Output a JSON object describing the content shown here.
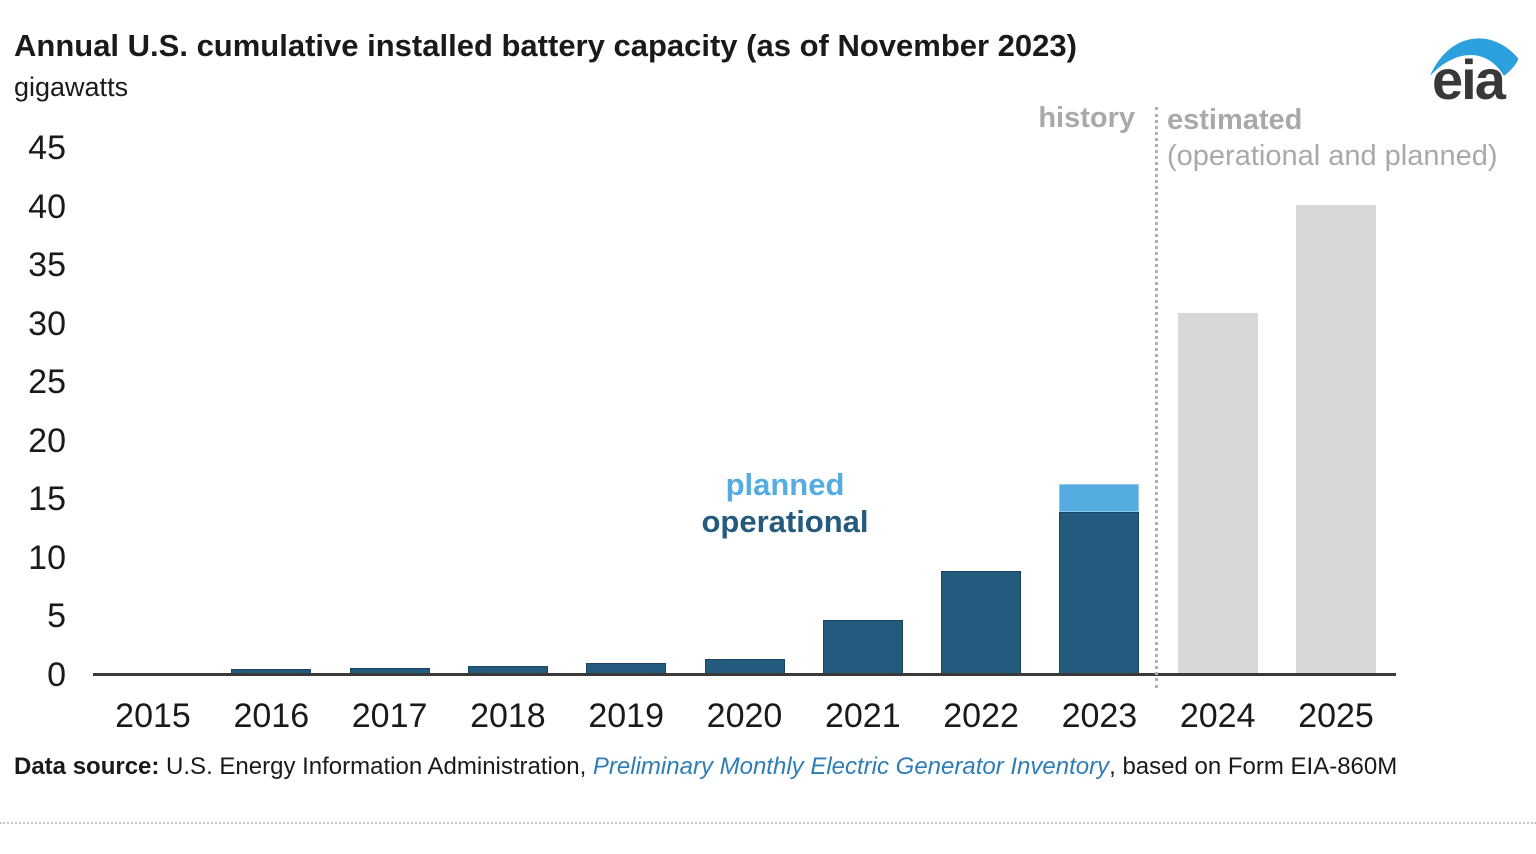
{
  "header": {
    "title": "Annual U.S. cumulative installed battery capacity (as of November 2023)",
    "subtitle": "gigawatts"
  },
  "logo": {
    "text": "eia"
  },
  "annotations": {
    "history": "history",
    "estimated": "estimated",
    "estimated_sub": "(operational and planned)",
    "planned": "planned",
    "operational": "operational"
  },
  "source": {
    "label": "Data source:",
    "agency": " U.S. Energy Information Administration, ",
    "link": "Preliminary Monthly Electric Generator Inventory",
    "suffix": ", based on Form EIA-860M"
  },
  "colors": {
    "operational": "#235a7d",
    "planned": "#55ace1",
    "estimated": "#d8d8d8",
    "annotation_gray": "#a9a9a9",
    "link_blue": "#2f7db6",
    "axis": "#3a3a3a",
    "logo_blue": "#2ba0dc",
    "text": "#1a1a1a"
  },
  "chart_data": {
    "type": "bar",
    "stacked": true,
    "title": "Annual U.S. cumulative installed battery capacity (as of November 2023)",
    "unit": "gigawatts",
    "xlabel": "",
    "ylabel": "gigawatts",
    "ylim": [
      0,
      45
    ],
    "yticks": [
      0,
      5,
      10,
      15,
      20,
      25,
      30,
      35,
      40,
      45
    ],
    "grid": false,
    "legend_position": "inline-annotations",
    "categories": [
      "2015",
      "2016",
      "2017",
      "2018",
      "2019",
      "2020",
      "2021",
      "2022",
      "2023",
      "2024",
      "2025"
    ],
    "series": [
      {
        "key": "operational",
        "name": "operational",
        "color": "#235a7d",
        "values": [
          0.2,
          0.5,
          0.6,
          0.8,
          1.0,
          1.4,
          4.7,
          8.9,
          13.9,
          null,
          null
        ]
      },
      {
        "key": "planned",
        "name": "planned",
        "color": "#55ace1",
        "values": [
          null,
          null,
          null,
          null,
          null,
          null,
          null,
          null,
          2.4,
          null,
          null
        ]
      },
      {
        "key": "estimated",
        "name": "estimated (operational and planned)",
        "color": "#d8d8d8",
        "values": [
          null,
          null,
          null,
          null,
          null,
          null,
          null,
          null,
          null,
          30.9,
          40.1
        ]
      }
    ],
    "separator_between": [
      "2023",
      "2024"
    ],
    "annotations": [
      "history",
      "estimated (operational and planned)"
    ]
  }
}
